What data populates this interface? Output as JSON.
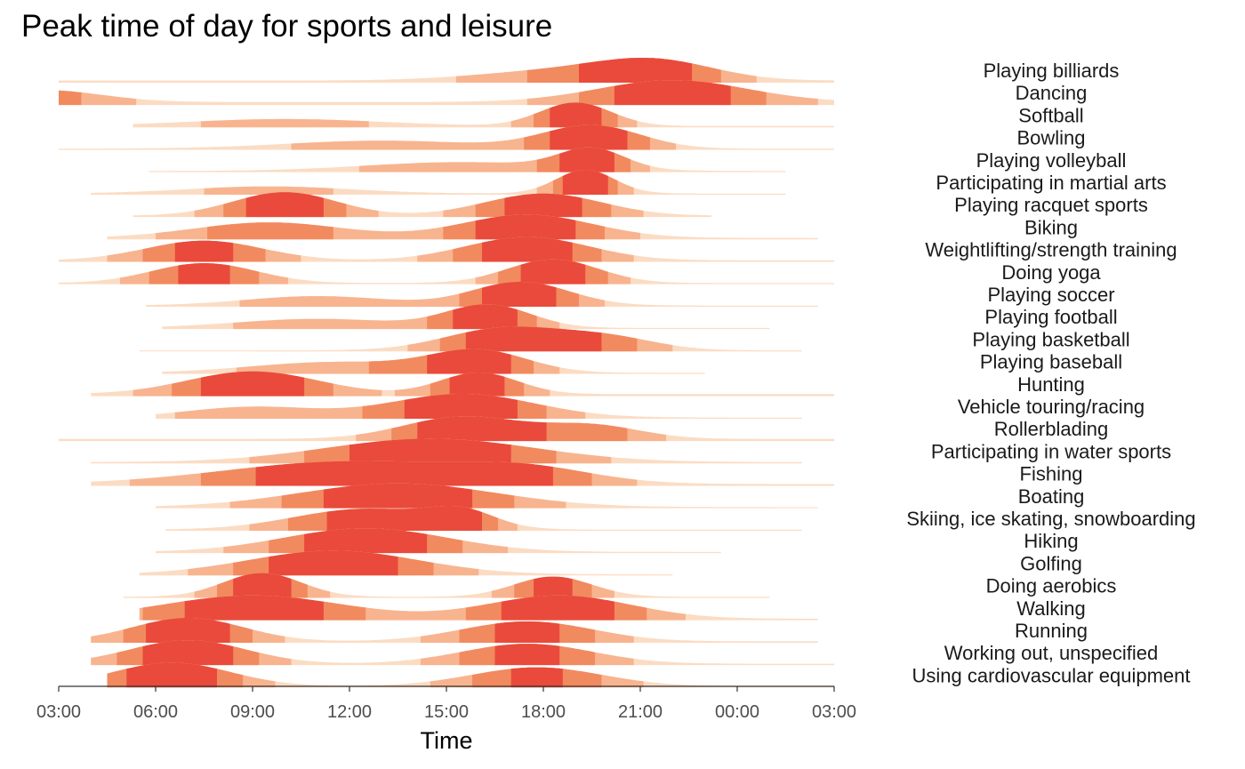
{
  "chart_data": {
    "type": "area",
    "title": "Peak time of day for sports and leisure",
    "xlabel": "Time",
    "ylabel": "",
    "x_tick_labels": [
      "03:00",
      "06:00",
      "09:00",
      "12:00",
      "15:00",
      "18:00",
      "21:00",
      "00:00",
      "03:00"
    ],
    "x_range_hours": [
      3,
      27
    ],
    "colors": {
      "band1": "#fbdcc3",
      "band2": "#f8b48f",
      "band3": "#f28a5f",
      "band4": "#e94a3b",
      "separator": "#ffffff",
      "axis": "#333333",
      "label": "#1a1a1a"
    },
    "series": [
      {
        "name": "Playing billiards",
        "peaks": [
          {
            "c": 21.5,
            "w": 1.8,
            "h": 1.0
          },
          {
            "c": 18.5,
            "w": 2.5,
            "h": 0.55
          }
        ],
        "start": 3.0,
        "end": 27.0,
        "base": 0.12
      },
      {
        "name": "Dancing",
        "peaks": [
          {
            "c": 22.0,
            "w": 2.3,
            "h": 1.0
          },
          {
            "c": 2.5,
            "w": 1.8,
            "h": 0.55
          }
        ],
        "start": 3.0,
        "end": 27.0,
        "base": 0.14
      },
      {
        "name": "Softball",
        "peaks": [
          {
            "c": 19.0,
            "w": 1.1,
            "h": 1.0
          },
          {
            "c": 10.0,
            "w": 3.0,
            "h": 0.3
          }
        ],
        "start": 5.3,
        "end": 27.0,
        "base": 0.06
      },
      {
        "name": "Bowling",
        "peaks": [
          {
            "c": 19.5,
            "w": 1.5,
            "h": 1.0
          },
          {
            "c": 13.0,
            "w": 3.0,
            "h": 0.35
          }
        ],
        "start": 3.0,
        "end": 27.0,
        "base": 0.05
      },
      {
        "name": "Playing volleyball",
        "peaks": [
          {
            "c": 19.5,
            "w": 1.0,
            "h": 1.0
          },
          {
            "c": 15.5,
            "w": 3.0,
            "h": 0.45
          }
        ],
        "start": 5.8,
        "end": 25.5,
        "base": 0.06
      },
      {
        "name": "Participating in martial arts",
        "peaks": [
          {
            "c": 19.3,
            "w": 0.9,
            "h": 1.0
          },
          {
            "c": 9.5,
            "w": 2.5,
            "h": 0.3
          }
        ],
        "start": 4.0,
        "end": 25.5,
        "base": 0.05
      },
      {
        "name": "Playing racquet sports",
        "peaks": [
          {
            "c": 10.0,
            "w": 1.6,
            "h": 0.85
          },
          {
            "c": 18.0,
            "w": 1.8,
            "h": 0.8
          }
        ],
        "start": 5.3,
        "end": 23.2,
        "base": 0.05
      },
      {
        "name": "Biking",
        "peaks": [
          {
            "c": 9.5,
            "w": 2.3,
            "h": 0.6
          },
          {
            "c": 17.5,
            "w": 2.0,
            "h": 0.9
          }
        ],
        "start": 4.5,
        "end": 26.5,
        "base": 0.06
      },
      {
        "name": "Weightlifting/strength training",
        "peaks": [
          {
            "c": 7.5,
            "w": 1.8,
            "h": 0.8
          },
          {
            "c": 17.5,
            "w": 1.9,
            "h": 0.95
          }
        ],
        "start": 3.0,
        "end": 27.0,
        "base": 0.06
      },
      {
        "name": "Doing yoga",
        "peaks": [
          {
            "c": 7.5,
            "w": 1.6,
            "h": 0.8
          },
          {
            "c": 18.3,
            "w": 1.4,
            "h": 0.95
          }
        ],
        "start": 3.0,
        "end": 27.0,
        "base": 0.05
      },
      {
        "name": "Playing soccer",
        "peaks": [
          {
            "c": 17.3,
            "w": 1.5,
            "h": 1.0
          },
          {
            "c": 11.0,
            "w": 2.2,
            "h": 0.4
          }
        ],
        "start": 5.7,
        "end": 26.5,
        "base": 0.05
      },
      {
        "name": "Playing football",
        "peaks": [
          {
            "c": 16.3,
            "w": 1.3,
            "h": 1.0
          },
          {
            "c": 11.0,
            "w": 2.5,
            "h": 0.4
          }
        ],
        "start": 6.2,
        "end": 25.0,
        "base": 0.05
      },
      {
        "name": "Playing basketball",
        "peaks": [
          {
            "c": 16.8,
            "w": 1.8,
            "h": 1.0
          },
          {
            "c": 20.0,
            "w": 1.5,
            "h": 0.55
          }
        ],
        "start": 5.5,
        "end": 26.0,
        "base": 0.05
      },
      {
        "name": "Playing baseball",
        "peaks": [
          {
            "c": 16.0,
            "w": 1.5,
            "h": 1.0
          },
          {
            "c": 11.5,
            "w": 2.5,
            "h": 0.5
          }
        ],
        "start": 6.2,
        "end": 23.0,
        "base": 0.05
      },
      {
        "name": "Hunting",
        "peaks": [
          {
            "c": 9.0,
            "w": 2.0,
            "h": 1.0
          },
          {
            "c": 16.0,
            "w": 1.2,
            "h": 0.95
          }
        ],
        "start": 4.0,
        "end": 27.0,
        "base": 0.1
      },
      {
        "name": "Vehicle touring/racing",
        "peaks": [
          {
            "c": 15.5,
            "w": 2.2,
            "h": 1.0
          },
          {
            "c": 9.0,
            "w": 2.0,
            "h": 0.45
          }
        ],
        "start": 6.0,
        "end": 26.0,
        "base": 0.05
      },
      {
        "name": "Rollerblading",
        "peaks": [
          {
            "c": 15.5,
            "w": 1.8,
            "h": 1.0
          },
          {
            "c": 19.5,
            "w": 1.5,
            "h": 0.6
          }
        ],
        "start": 3.0,
        "end": 27.0,
        "base": 0.1
      },
      {
        "name": "Participating in water sports",
        "peaks": [
          {
            "c": 14.5,
            "w": 3.2,
            "h": 1.0
          }
        ],
        "start": 4.0,
        "end": 26.0,
        "base": 0.06
      },
      {
        "name": "Fishing",
        "peaks": [
          {
            "c": 12.0,
            "w": 3.8,
            "h": 1.0
          },
          {
            "c": 17.5,
            "w": 2.0,
            "h": 0.55
          }
        ],
        "start": 4.0,
        "end": 27.0,
        "base": 0.08
      },
      {
        "name": "Boating",
        "peaks": [
          {
            "c": 13.5,
            "w": 3.0,
            "h": 1.0
          }
        ],
        "start": 6.0,
        "end": 26.5,
        "base": 0.05
      },
      {
        "name": "Skiing, ice skating, snowboarding",
        "peaks": [
          {
            "c": 12.5,
            "w": 2.2,
            "h": 1.0
          },
          {
            "c": 15.5,
            "w": 1.0,
            "h": 0.7
          }
        ],
        "start": 6.3,
        "end": 26.0,
        "base": 0.05
      },
      {
        "name": "Hiking",
        "peaks": [
          {
            "c": 12.5,
            "w": 2.5,
            "h": 1.0
          }
        ],
        "start": 6.0,
        "end": 23.5,
        "base": 0.05
      },
      {
        "name": "Golfing",
        "peaks": [
          {
            "c": 11.5,
            "w": 2.6,
            "h": 1.0
          }
        ],
        "start": 5.5,
        "end": 22.0,
        "base": 0.05
      },
      {
        "name": "Doing aerobics",
        "peaks": [
          {
            "c": 9.3,
            "w": 1.2,
            "h": 1.0
          },
          {
            "c": 18.3,
            "w": 1.2,
            "h": 0.85
          }
        ],
        "start": 5.0,
        "end": 25.0,
        "base": 0.05
      },
      {
        "name": "Walking",
        "peaks": [
          {
            "c": 9.0,
            "w": 2.8,
            "h": 0.9
          },
          {
            "c": 18.5,
            "w": 2.2,
            "h": 0.9
          }
        ],
        "start": 5.5,
        "end": 26.5,
        "base": 0.06
      },
      {
        "name": "Running",
        "peaks": [
          {
            "c": 7.0,
            "w": 1.7,
            "h": 1.0
          },
          {
            "c": 17.5,
            "w": 2.0,
            "h": 0.85
          }
        ],
        "start": 4.0,
        "end": 26.5,
        "base": 0.06
      },
      {
        "name": "Working out, unspecified",
        "peaks": [
          {
            "c": 7.0,
            "w": 1.8,
            "h": 1.0
          },
          {
            "c": 17.5,
            "w": 2.0,
            "h": 0.85
          }
        ],
        "start": 4.0,
        "end": 27.0,
        "base": 0.06
      },
      {
        "name": "Using cardiovascular equipment",
        "peaks": [
          {
            "c": 6.5,
            "w": 1.8,
            "h": 1.0
          },
          {
            "c": 17.8,
            "w": 2.0,
            "h": 0.8
          }
        ],
        "start": 4.5,
        "end": 27.0,
        "base": 0.06
      }
    ]
  }
}
